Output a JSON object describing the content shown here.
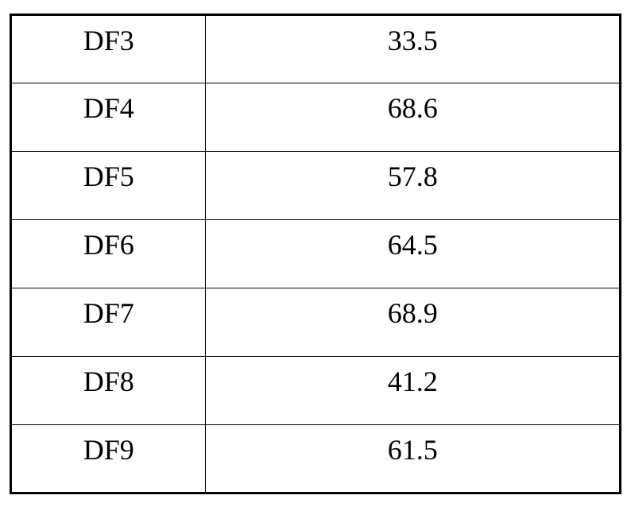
{
  "table": {
    "type": "table",
    "background_color": "#ffffff",
    "border_color": "#000000",
    "outer_border_width": 3,
    "inner_border_width": 1.5,
    "font_family": "Times New Roman",
    "font_size": 36,
    "text_color": "#000000",
    "columns": [
      {
        "key": "label",
        "width_pct": 32,
        "align": "center"
      },
      {
        "key": "value",
        "width_pct": 68,
        "align": "center"
      }
    ],
    "rows": [
      {
        "label": "DF3",
        "value": "33.5"
      },
      {
        "label": "DF4",
        "value": "68.6"
      },
      {
        "label": "DF5",
        "value": "57.8"
      },
      {
        "label": "DF6",
        "value": "64.5"
      },
      {
        "label": "DF7",
        "value": "68.9"
      },
      {
        "label": "DF8",
        "value": "41.2"
      },
      {
        "label": "DF9",
        "value": "61.5"
      }
    ]
  }
}
